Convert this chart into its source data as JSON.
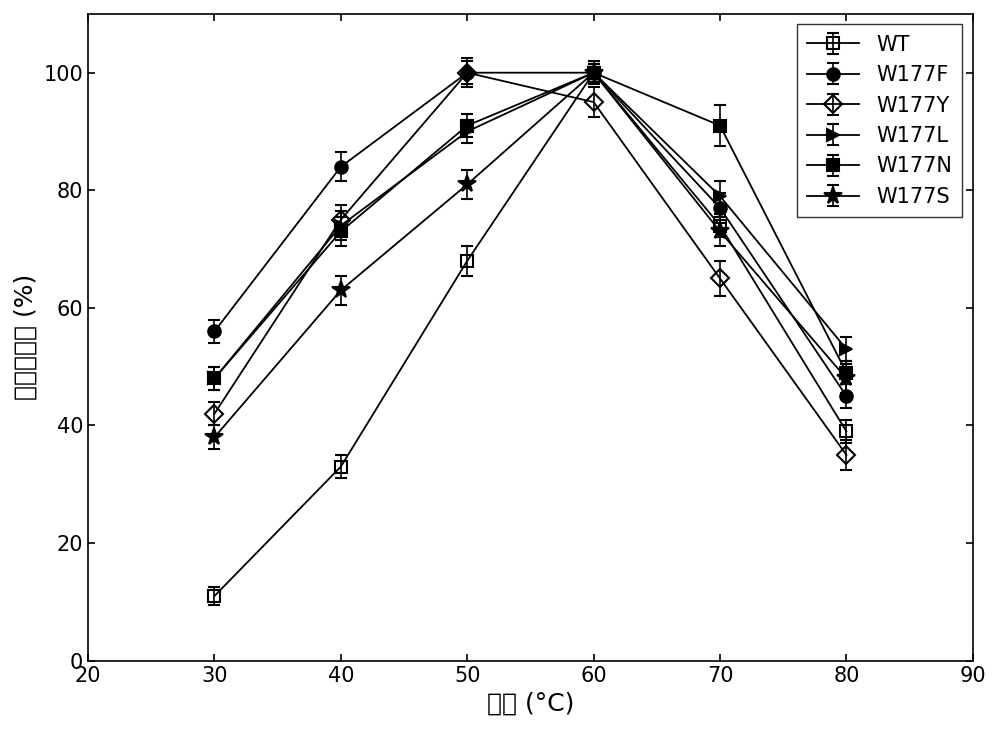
{
  "x": [
    30,
    40,
    50,
    60,
    70,
    80
  ],
  "series": [
    {
      "label": "WT",
      "y": [
        11,
        33,
        68,
        100,
        74,
        39
      ],
      "yerr": [
        1.5,
        2.0,
        2.5,
        1.5,
        2.0,
        2.0
      ],
      "marker": "s",
      "fillstyle": "none",
      "color": "#000000",
      "linestyle": "-",
      "markersize": 8
    },
    {
      "label": "W177F",
      "y": [
        56,
        84,
        100,
        100,
        77,
        45
      ],
      "yerr": [
        2.0,
        2.5,
        2.0,
        1.5,
        2.5,
        2.0
      ],
      "marker": "o",
      "fillstyle": "full",
      "color": "#000000",
      "linestyle": "-",
      "markersize": 9
    },
    {
      "label": "W177Y",
      "y": [
        42,
        75,
        100,
        95,
        65,
        35
      ],
      "yerr": [
        2.0,
        2.5,
        2.5,
        2.5,
        3.0,
        2.5
      ],
      "marker": "D",
      "fillstyle": "none",
      "color": "#000000",
      "linestyle": "-",
      "markersize": 9
    },
    {
      "label": "W177L",
      "y": [
        48,
        74,
        90,
        100,
        79,
        53
      ],
      "yerr": [
        2.0,
        2.5,
        2.0,
        1.5,
        2.5,
        2.0
      ],
      "marker": ">",
      "fillstyle": "full",
      "color": "#000000",
      "linestyle": "-",
      "markersize": 9
    },
    {
      "label": "W177N",
      "y": [
        48,
        73,
        91,
        100,
        91,
        49
      ],
      "yerr": [
        2.0,
        2.5,
        2.0,
        1.5,
        3.5,
        2.0
      ],
      "marker": "s",
      "fillstyle": "full",
      "color": "#000000",
      "linestyle": "-",
      "markersize": 9
    },
    {
      "label": "W177S",
      "y": [
        38,
        63,
        81,
        100,
        73,
        48
      ],
      "yerr": [
        2.0,
        2.5,
        2.5,
        2.0,
        2.5,
        2.5
      ],
      "marker": "*",
      "fillstyle": "full",
      "color": "#000000",
      "linestyle": "-",
      "markersize": 13
    }
  ],
  "xlabel": "温度 (°C)",
  "ylabel": "相对比活力 (%)",
  "xlim": [
    20,
    90
  ],
  "ylim": [
    0,
    110
  ],
  "xticks": [
    20,
    30,
    40,
    50,
    60,
    70,
    80,
    90
  ],
  "yticks": [
    0,
    20,
    40,
    60,
    80,
    100
  ],
  "background_color": "#ffffff",
  "legend_loc": "upper right",
  "fontsize_label": 18,
  "fontsize_tick": 15,
  "fontsize_legend": 15
}
